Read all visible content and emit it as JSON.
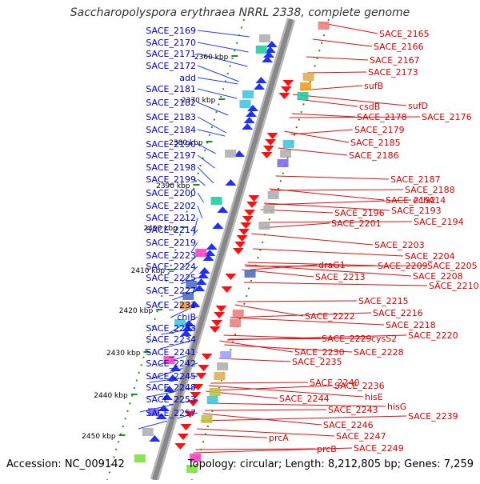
{
  "title": "Saccharopolyspora erythraea NRRL 2338, complete genome",
  "footer": {
    "accession": "Accession: NC_009142",
    "summary": "Topology: circular; Length: 8,212,805 bp; Genes: 7,259"
  },
  "colors": {
    "plus_label": "#0000cc",
    "minus_label": "#dd0000",
    "tick": "#228b22",
    "backbone": "#888888",
    "plus_arrow": "#1f2fff",
    "minus_arrow": "#ff1010"
  },
  "ticks": [
    "2360 kbp",
    "2370 kbp",
    "2380 kbp",
    "2390 kbp",
    "2400 kbp",
    "2410 kbp",
    "2420 kbp",
    "2430 kbp",
    "2440 kbp",
    "2450 kbp"
  ],
  "plus_labels": [
    "SACE_2169",
    "SACE_2170",
    "SACE_2171",
    "SACE_2172",
    "add",
    "SACE_2181",
    "SACE_2182",
    "SACE_2183",
    "SACE_2184",
    "SACE_2190",
    "SACE_2197",
    "SACE_2198",
    "SACE_2199",
    "SACE_2200",
    "SACE_2202",
    "SACE_2212",
    "SACE_2214",
    "SACE_2219",
    "SACE_2223",
    "SACE_2224",
    "SACE_2225",
    "SACE_2227",
    "SACE_2231",
    "chiB",
    "SACE_2233",
    "SACE_2234",
    "SACE_2241",
    "SACE_2242",
    "SACE_2245",
    "SACE_2248",
    "SACE_2253",
    "SACE_2257"
  ],
  "minus_labels": [
    "SACE_2165",
    "SACE_2166",
    "SACE_2167",
    "SACE_2173",
    "sufB",
    "sufD",
    "csdB",
    "SACE_2178",
    "SACE_2176",
    "SACE_2179",
    "SACE_2185",
    "SACE_2186",
    "SACE_2187",
    "SACE_2188",
    "echA14",
    "SACE_2192",
    "SACE_2193",
    "SACE_2196",
    "SACE_2194",
    "SACE_2201",
    "SACE_2203",
    "SACE_2204",
    "SACE_2209",
    "SACE_2205",
    "draG1",
    "SACE_2208",
    "SACE_2213",
    "SACE_2210",
    "SACE_2215",
    "SACE_2216",
    "SACE_2222",
    "SACE_2218",
    "SACE_2229",
    "cysS2",
    "SACE_2220",
    "SACE_2230",
    "SACE_2228",
    "SACE_2235",
    "SACE_2240",
    "SACE_2236",
    "hisE",
    "SACE_2244",
    "hisG",
    "SACE_2243",
    "SACE_2239",
    "SACE_2246",
    "SACE_2247",
    "prcA",
    "prcB",
    "SACE_2249"
  ]
}
